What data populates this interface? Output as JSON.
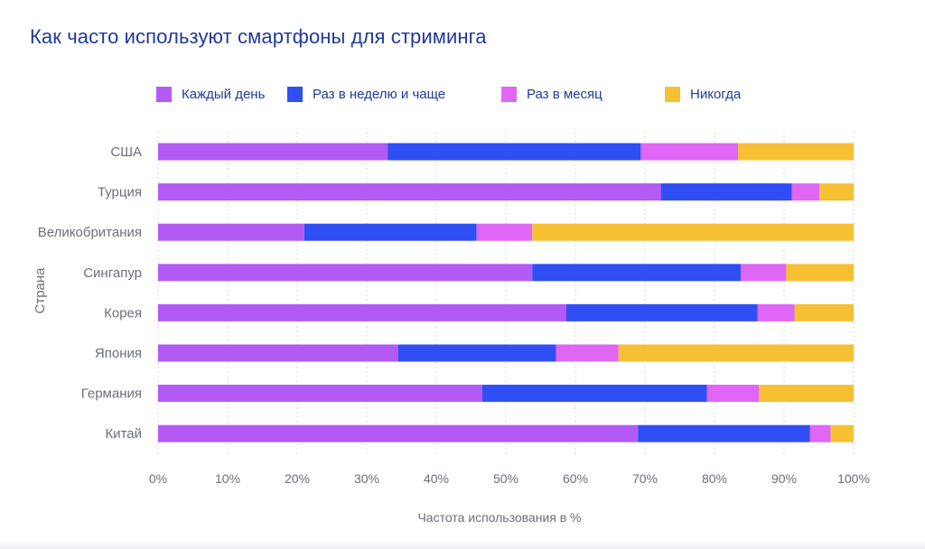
{
  "title": "Как часто используют смартфоны для стриминга",
  "chart_data": {
    "type": "bar",
    "orientation": "horizontal",
    "stacked": true,
    "categories": [
      "США",
      "Турция",
      "Великобритания",
      "Сингапур",
      "Корея",
      "Япония",
      "Германия",
      "Китай"
    ],
    "series": [
      {
        "name": "Каждый день",
        "color": "#b35af5",
        "values": [
          33,
          72.3,
          21,
          53.8,
          58.7,
          34.5,
          46.6,
          69
        ]
      },
      {
        "name": "Раз в неделю и чаще",
        "color": "#2f4ff5",
        "values": [
          36.4,
          18.8,
          24.8,
          30,
          27.5,
          22.7,
          32.3,
          24.7
        ]
      },
      {
        "name": "Раз в месяц",
        "color": "#e066f5",
        "values": [
          14,
          4,
          8,
          6.5,
          5.3,
          9,
          7.5,
          3
        ]
      },
      {
        "name": "Никогда",
        "color": "#f6c033",
        "values": [
          16.6,
          4.9,
          46.2,
          9.7,
          8.5,
          33.8,
          13.6,
          3.3
        ]
      }
    ],
    "xlim": [
      0,
      100
    ],
    "xticks": [
      "0%",
      "10%",
      "20%",
      "30%",
      "40%",
      "50%",
      "60%",
      "70%",
      "80%",
      "90%",
      "100%"
    ],
    "xlabel": "Частота использования в %",
    "ylabel": "Страна",
    "grid": "vertical dotted",
    "legend": "top"
  }
}
